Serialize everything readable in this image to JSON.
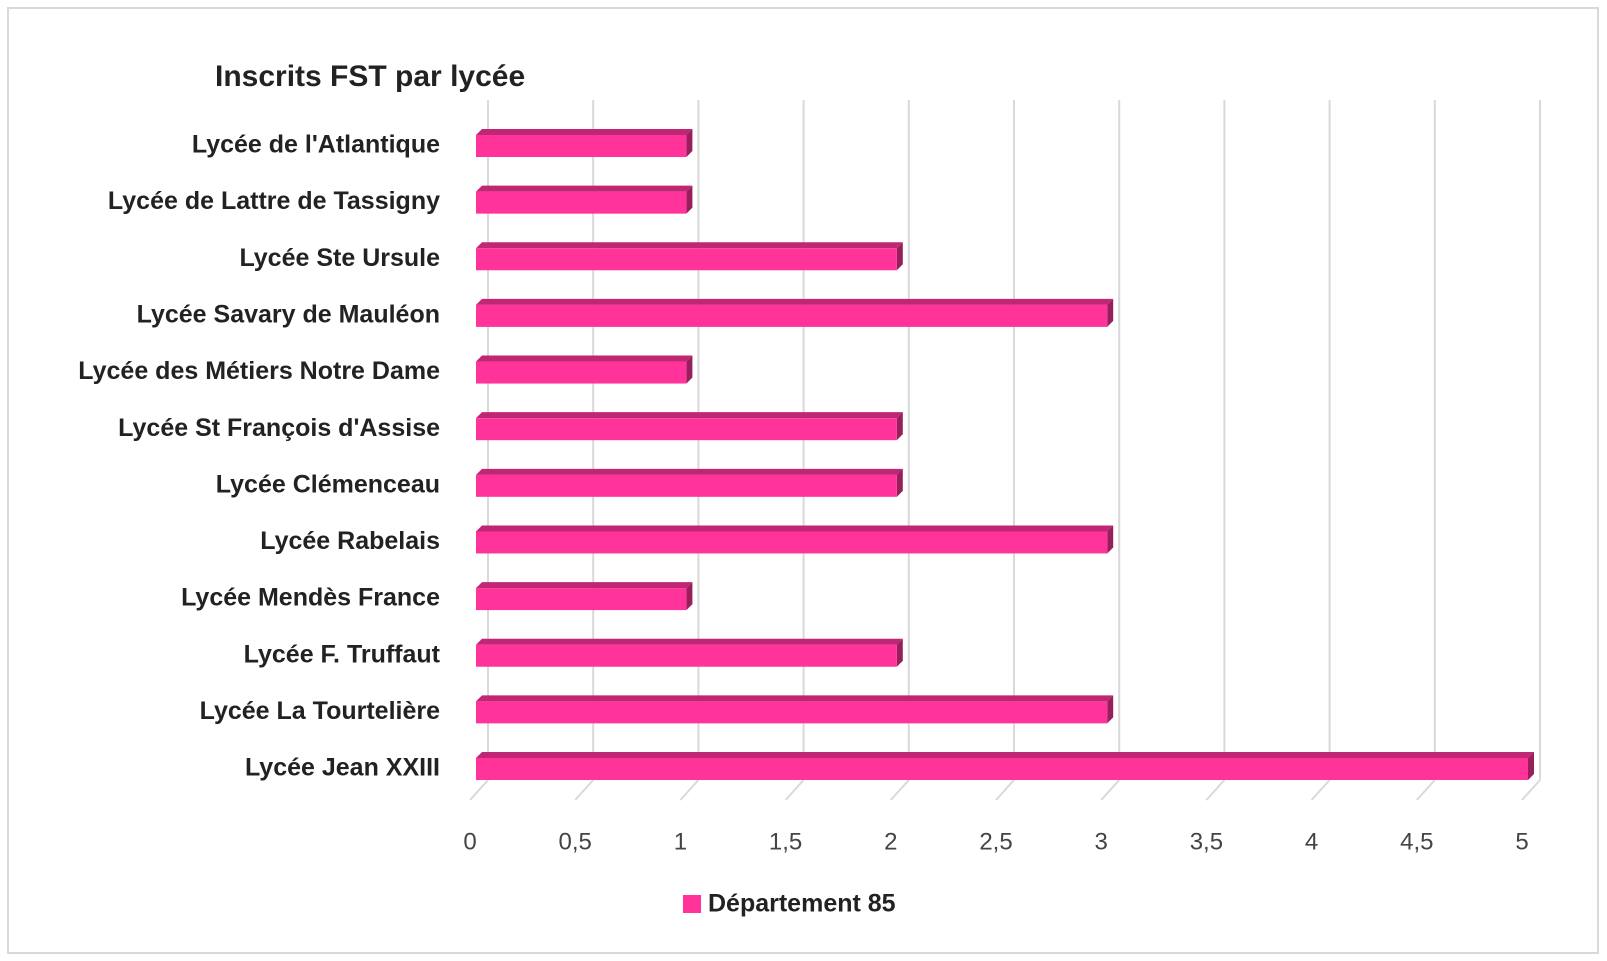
{
  "chart_data": {
    "type": "bar",
    "orientation": "horizontal",
    "title": "Inscrits FST par lycée",
    "categories": [
      "Lycée de l'Atlantique",
      "Lycée de Lattre de Tassigny",
      "Lycée Ste Ursule",
      "Lycée Savary de Mauléon",
      "Lycée des Métiers Notre Dame",
      "Lycée St François d'Assise",
      "Lycée Clémenceau",
      "Lycée Rabelais",
      "Lycée Mendès France",
      "Lycée F. Truffaut",
      "Lycée La Tourtelière",
      "Lycée Jean XXIII"
    ],
    "series": [
      {
        "name": "Département 85",
        "color": "#ff3399",
        "values": [
          1,
          1,
          2,
          3,
          1,
          2,
          2,
          3,
          1,
          2,
          3,
          5
        ]
      }
    ],
    "xlim": [
      0,
      5
    ],
    "xticks": [
      0,
      {
        "value": 0.5,
        "label": "0,5"
      },
      1,
      {
        "value": 1.5,
        "label": "1,5"
      },
      2,
      {
        "value": 2.5,
        "label": "2,5"
      },
      3,
      {
        "value": 3.5,
        "label": "3,5"
      },
      4,
      {
        "value": 4.5,
        "label": "4,5"
      },
      5
    ],
    "grid": true,
    "legend": "bottom"
  }
}
